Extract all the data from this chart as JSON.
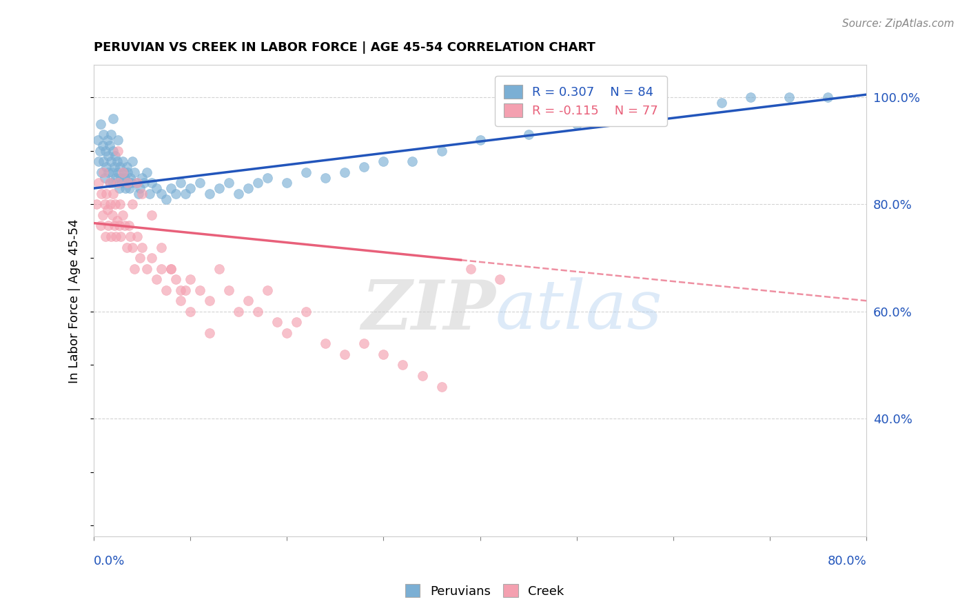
{
  "title": "PERUVIAN VS CREEK IN LABOR FORCE | AGE 45-54 CORRELATION CHART",
  "source_text": "Source: ZipAtlas.com",
  "ylabel": "In Labor Force | Age 45-54",
  "legend_blue_label": "Peruvians",
  "legend_pink_label": "Creek",
  "r_blue": 0.307,
  "n_blue": 84,
  "r_pink": -0.115,
  "n_pink": 77,
  "blue_color": "#7BAFD4",
  "pink_color": "#F4A0B0",
  "blue_line_color": "#2255BB",
  "pink_line_color": "#E8607A",
  "watermark_zip": "ZIP",
  "watermark_atlas": "atlas",
  "xmin": 0.0,
  "xmax": 0.8,
  "ymin": 0.18,
  "ymax": 1.06,
  "yticks": [
    0.4,
    0.6,
    0.8,
    1.0
  ],
  "ytick_labels": [
    "40.0%",
    "60.0%",
    "80.0%",
    "100.0%"
  ],
  "blue_line_x0": 0.0,
  "blue_line_y0": 0.83,
  "blue_line_x1": 0.8,
  "blue_line_y1": 1.005,
  "pink_line_x0": 0.0,
  "pink_line_y0": 0.765,
  "pink_line_x1_solid": 0.38,
  "pink_line_x1": 0.8,
  "pink_line_y1": 0.62,
  "blue_scatter_x": [
    0.004,
    0.005,
    0.006,
    0.007,
    0.008,
    0.009,
    0.01,
    0.01,
    0.011,
    0.012,
    0.013,
    0.014,
    0.015,
    0.015,
    0.016,
    0.017,
    0.018,
    0.018,
    0.019,
    0.02,
    0.02,
    0.021,
    0.022,
    0.023,
    0.024,
    0.025,
    0.026,
    0.027,
    0.028,
    0.029,
    0.03,
    0.031,
    0.032,
    0.033,
    0.034,
    0.035,
    0.036,
    0.037,
    0.038,
    0.039,
    0.04,
    0.042,
    0.044,
    0.046,
    0.048,
    0.05,
    0.052,
    0.055,
    0.058,
    0.06,
    0.065,
    0.07,
    0.075,
    0.08,
    0.085,
    0.09,
    0.095,
    0.1,
    0.11,
    0.12,
    0.13,
    0.14,
    0.15,
    0.16,
    0.17,
    0.18,
    0.2,
    0.22,
    0.24,
    0.26,
    0.28,
    0.3,
    0.33,
    0.36,
    0.4,
    0.45,
    0.5,
    0.55,
    0.65,
    0.68,
    0.72,
    0.76,
    0.02,
    0.025
  ],
  "blue_scatter_y": [
    0.92,
    0.88,
    0.9,
    0.95,
    0.86,
    0.91,
    0.88,
    0.93,
    0.85,
    0.9,
    0.87,
    0.92,
    0.86,
    0.89,
    0.91,
    0.84,
    0.88,
    0.93,
    0.86,
    0.9,
    0.84,
    0.87,
    0.89,
    0.85,
    0.88,
    0.86,
    0.83,
    0.87,
    0.85,
    0.84,
    0.88,
    0.86,
    0.85,
    0.83,
    0.87,
    0.86,
    0.84,
    0.83,
    0.85,
    0.84,
    0.88,
    0.86,
    0.84,
    0.82,
    0.83,
    0.85,
    0.84,
    0.86,
    0.82,
    0.84,
    0.83,
    0.82,
    0.81,
    0.83,
    0.82,
    0.84,
    0.82,
    0.83,
    0.84,
    0.82,
    0.83,
    0.84,
    0.82,
    0.83,
    0.84,
    0.85,
    0.84,
    0.86,
    0.85,
    0.86,
    0.87,
    0.88,
    0.88,
    0.9,
    0.92,
    0.93,
    0.95,
    0.97,
    0.99,
    1.0,
    1.0,
    1.0,
    0.96,
    0.92
  ],
  "pink_scatter_x": [
    0.003,
    0.005,
    0.007,
    0.008,
    0.009,
    0.01,
    0.011,
    0.012,
    0.013,
    0.014,
    0.015,
    0.016,
    0.017,
    0.018,
    0.019,
    0.02,
    0.021,
    0.022,
    0.023,
    0.024,
    0.025,
    0.026,
    0.027,
    0.028,
    0.03,
    0.032,
    0.034,
    0.036,
    0.038,
    0.04,
    0.042,
    0.045,
    0.048,
    0.05,
    0.055,
    0.06,
    0.065,
    0.07,
    0.075,
    0.08,
    0.085,
    0.09,
    0.095,
    0.1,
    0.11,
    0.12,
    0.13,
    0.14,
    0.15,
    0.16,
    0.17,
    0.18,
    0.19,
    0.2,
    0.21,
    0.22,
    0.24,
    0.26,
    0.28,
    0.3,
    0.32,
    0.34,
    0.36,
    0.025,
    0.03,
    0.035,
    0.04,
    0.045,
    0.05,
    0.06,
    0.07,
    0.08,
    0.09,
    0.1,
    0.12,
    0.39,
    0.42
  ],
  "pink_scatter_y": [
    0.8,
    0.84,
    0.76,
    0.82,
    0.78,
    0.86,
    0.8,
    0.74,
    0.82,
    0.79,
    0.76,
    0.84,
    0.8,
    0.74,
    0.78,
    0.82,
    0.76,
    0.8,
    0.74,
    0.77,
    0.84,
    0.76,
    0.8,
    0.74,
    0.78,
    0.76,
    0.72,
    0.76,
    0.74,
    0.72,
    0.68,
    0.74,
    0.7,
    0.72,
    0.68,
    0.7,
    0.66,
    0.68,
    0.64,
    0.68,
    0.66,
    0.62,
    0.64,
    0.66,
    0.64,
    0.62,
    0.68,
    0.64,
    0.6,
    0.62,
    0.6,
    0.64,
    0.58,
    0.56,
    0.58,
    0.6,
    0.54,
    0.52,
    0.54,
    0.52,
    0.5,
    0.48,
    0.46,
    0.9,
    0.86,
    0.84,
    0.8,
    0.84,
    0.82,
    0.78,
    0.72,
    0.68,
    0.64,
    0.6,
    0.56,
    0.68,
    0.66
  ]
}
